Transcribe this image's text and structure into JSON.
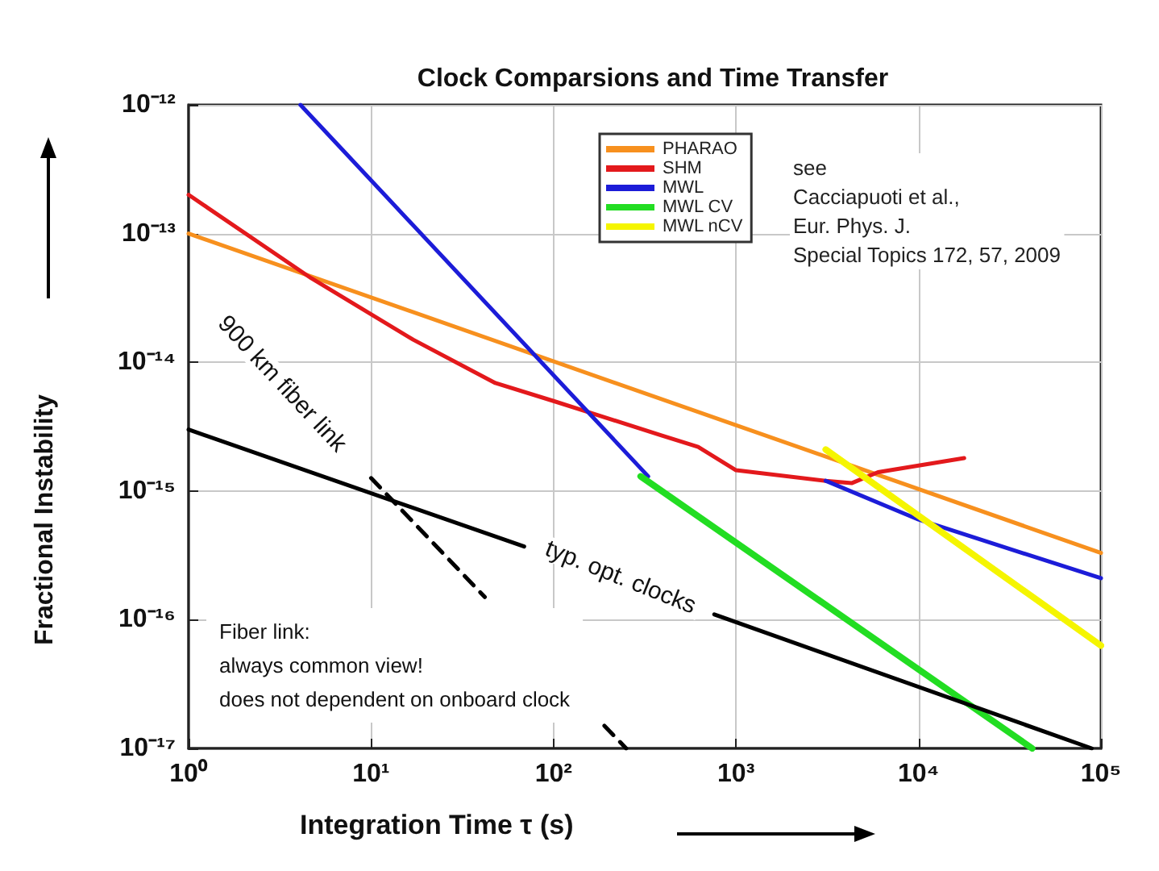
{
  "chart_data": {
    "type": "line",
    "title": "Clock Comparsions and Time Transfer",
    "xlabel": "Integration Time τ (s)",
    "ylabel": "Fractional Instability",
    "log": "xy",
    "grid": true,
    "legend": "top right",
    "marker": "none",
    "xlim": [
      1,
      100000
    ],
    "ylim": [
      1e-17,
      1e-12
    ],
    "xticks": [
      {
        "value": 1,
        "label": "10⁰"
      },
      {
        "value": 10,
        "label": "10¹"
      },
      {
        "value": 100,
        "label": "10²"
      },
      {
        "value": 1000,
        "label": "10³"
      },
      {
        "value": 10000,
        "label": "10⁴"
      },
      {
        "value": 100000,
        "label": "10⁵"
      }
    ],
    "yticks": [
      {
        "value": 1e-17,
        "label": "10⁻¹⁷"
      },
      {
        "value": 1e-16,
        "label": "10⁻¹⁶"
      },
      {
        "value": 1e-15,
        "label": "10⁻¹⁵"
      },
      {
        "value": 1e-14,
        "label": "10⁻¹⁴"
      },
      {
        "value": 1e-13,
        "label": "10⁻¹³"
      },
      {
        "value": 1e-12,
        "label": "10⁻¹²"
      }
    ],
    "series": [
      {
        "name": "PHARAO",
        "color": "#f7901e",
        "x": [
          1,
          100000
        ],
        "values": [
          1e-13,
          3.3e-16
        ]
      },
      {
        "name": "SHM",
        "color": "#e3191c",
        "x": [
          1,
          4.7,
          17,
          48,
          100,
          390,
          620,
          1000,
          3100,
          4300,
          6000,
          17800
        ],
        "values": [
          2e-13,
          4.5e-14,
          1.5e-14,
          6.9e-15,
          5e-15,
          2.7e-15,
          2.2e-15,
          1.45e-15,
          1.2e-15,
          1.15e-15,
          1.4e-15,
          1.8e-15
        ]
      },
      {
        "name": "MWL",
        "color": "#1c1cd8",
        "x": [
          4.1,
          330,
          1000,
          3100,
          10000,
          100000
        ],
        "values": [
          1e-12,
          1.3e-15,
          null,
          1.2e-15,
          6e-16,
          2.1e-16
        ]
      },
      {
        "name": "MWL CV",
        "color": "#22dd22",
        "x": [
          300,
          42000
        ],
        "values": [
          1.3e-15,
          1e-17
        ]
      },
      {
        "name": "MWL nCV",
        "color": "#f5f500",
        "x": [
          3100,
          100000
        ],
        "values": [
          2.1e-15,
          6.3e-17
        ]
      },
      {
        "color": "#000000",
        "x": [
          1,
          69,
          250,
          760,
          89000
        ],
        "values": [
          3e-15,
          3.7e-16,
          null,
          1.1e-16,
          1e-17
        ]
      },
      {
        "color": "#000000",
        "line_style": "dashed",
        "x": [
          10,
          42,
          120,
          190,
          250
        ],
        "values": [
          1.26e-15,
          1.5e-16,
          null,
          1.5e-17,
          1e-17
        ]
      }
    ],
    "annotations": [
      "900 km fiber link",
      "typ. opt. clocks",
      "see\nCacciapuoti et al.,\nEur. Phys. J.\nSpecial Topics 172, 57, 2009",
      "Fiber link:\nalways common view!\ndoes not dependent on onboard clock"
    ]
  }
}
